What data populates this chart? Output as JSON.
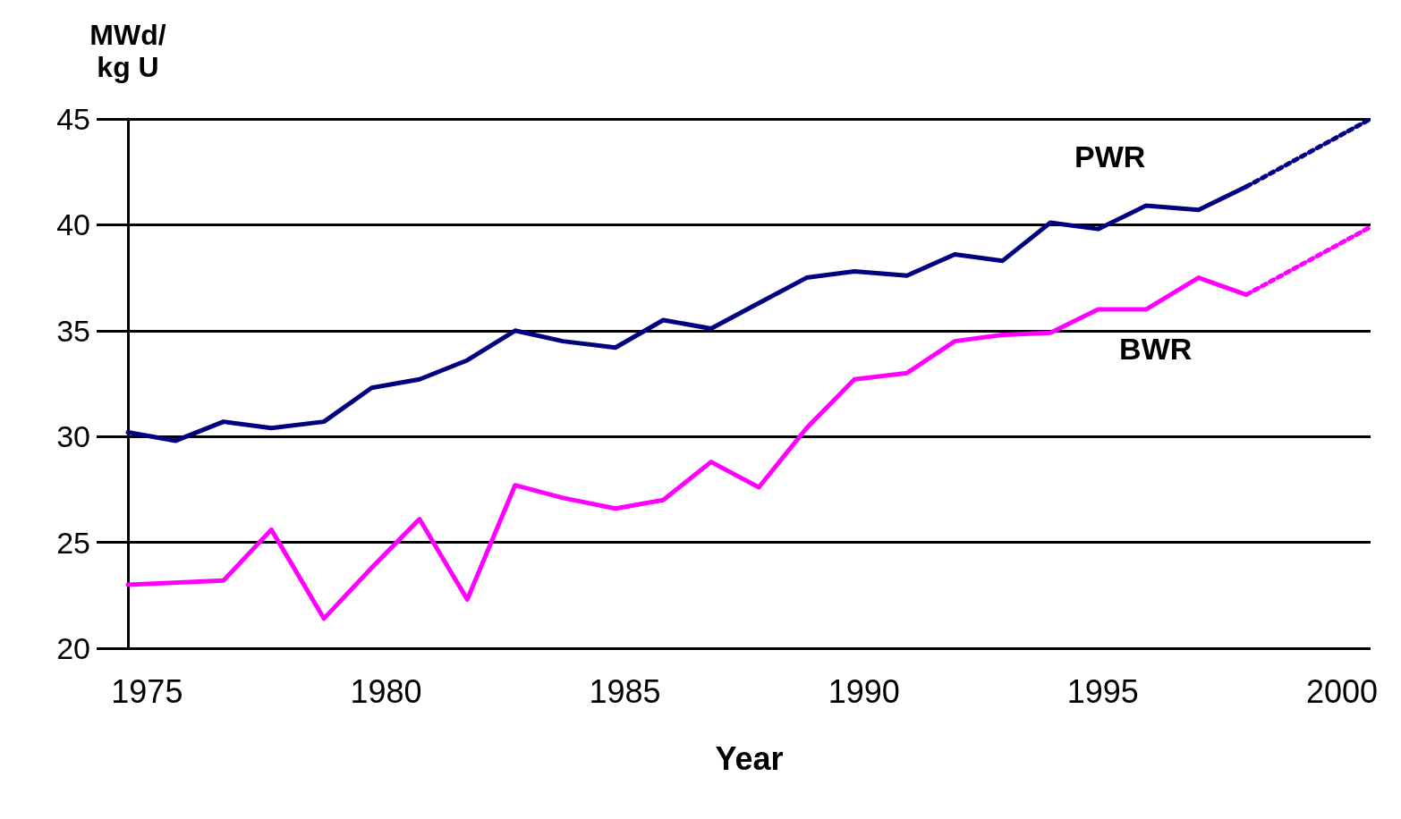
{
  "chart_data": {
    "type": "line",
    "xlabel": "Year",
    "ylabel": "MWd/\nkg U",
    "xlim": [
      1974.6,
      2000.6
    ],
    "xticks": [
      1975,
      1980,
      1985,
      1990,
      1995,
      2000
    ],
    "ylim": [
      20,
      45
    ],
    "yticks": [
      20,
      25,
      30,
      35,
      40,
      45
    ],
    "grid": "y",
    "legend": false,
    "marker": "none",
    "series": [
      {
        "name": "PWR",
        "color": "#000080",
        "line_style": "solid",
        "x": [
          1974.6,
          1975.6,
          1976.6,
          1977.6,
          1978.7,
          1979.7,
          1980.7,
          1981.7,
          1982.7,
          1983.7,
          1984.8,
          1985.8,
          1986.8,
          1987.8,
          1988.8,
          1989.8,
          1990.9,
          1991.9,
          1992.9,
          1993.9,
          1994.9,
          1995.9,
          1997.0,
          1998.0
        ],
        "values": [
          30.2,
          29.8,
          30.7,
          30.4,
          30.7,
          32.3,
          32.7,
          33.6,
          35.0,
          34.5,
          34.2,
          35.5,
          35.1,
          36.3,
          37.5,
          37.8,
          37.6,
          38.6,
          38.3,
          40.1,
          39.8,
          40.9,
          40.7,
          41.8
        ]
      },
      {
        "color": "#000080",
        "line_style": "dotted",
        "x": [
          1998.0,
          2000.6
        ],
        "values": [
          41.8,
          45.0
        ]
      },
      {
        "name": "BWR",
        "color": "#ff00ff",
        "line_style": "solid",
        "x": [
          1974.6,
          1976.6,
          1977.6,
          1978.7,
          1979.7,
          1980.7,
          1981.7,
          1982.7,
          1983.7,
          1984.8,
          1985.8,
          1986.8,
          1987.8,
          1988.8,
          1989.8,
          1990.9,
          1991.9,
          1992.9,
          1993.9,
          1994.9,
          1995.9,
          1997.0,
          1998.0
        ],
        "values": [
          23.0,
          23.2,
          25.6,
          21.4,
          23.8,
          26.1,
          22.3,
          27.7,
          27.1,
          26.6,
          27.0,
          28.8,
          27.6,
          30.4,
          32.7,
          33.0,
          34.5,
          34.8,
          34.9,
          36.0,
          36.0,
          37.5,
          36.7
        ]
      },
      {
        "color": "#ff00ff",
        "line_style": "dotted",
        "x": [
          1998.0,
          2000.6
        ],
        "values": [
          36.7,
          39.9
        ]
      }
    ]
  }
}
